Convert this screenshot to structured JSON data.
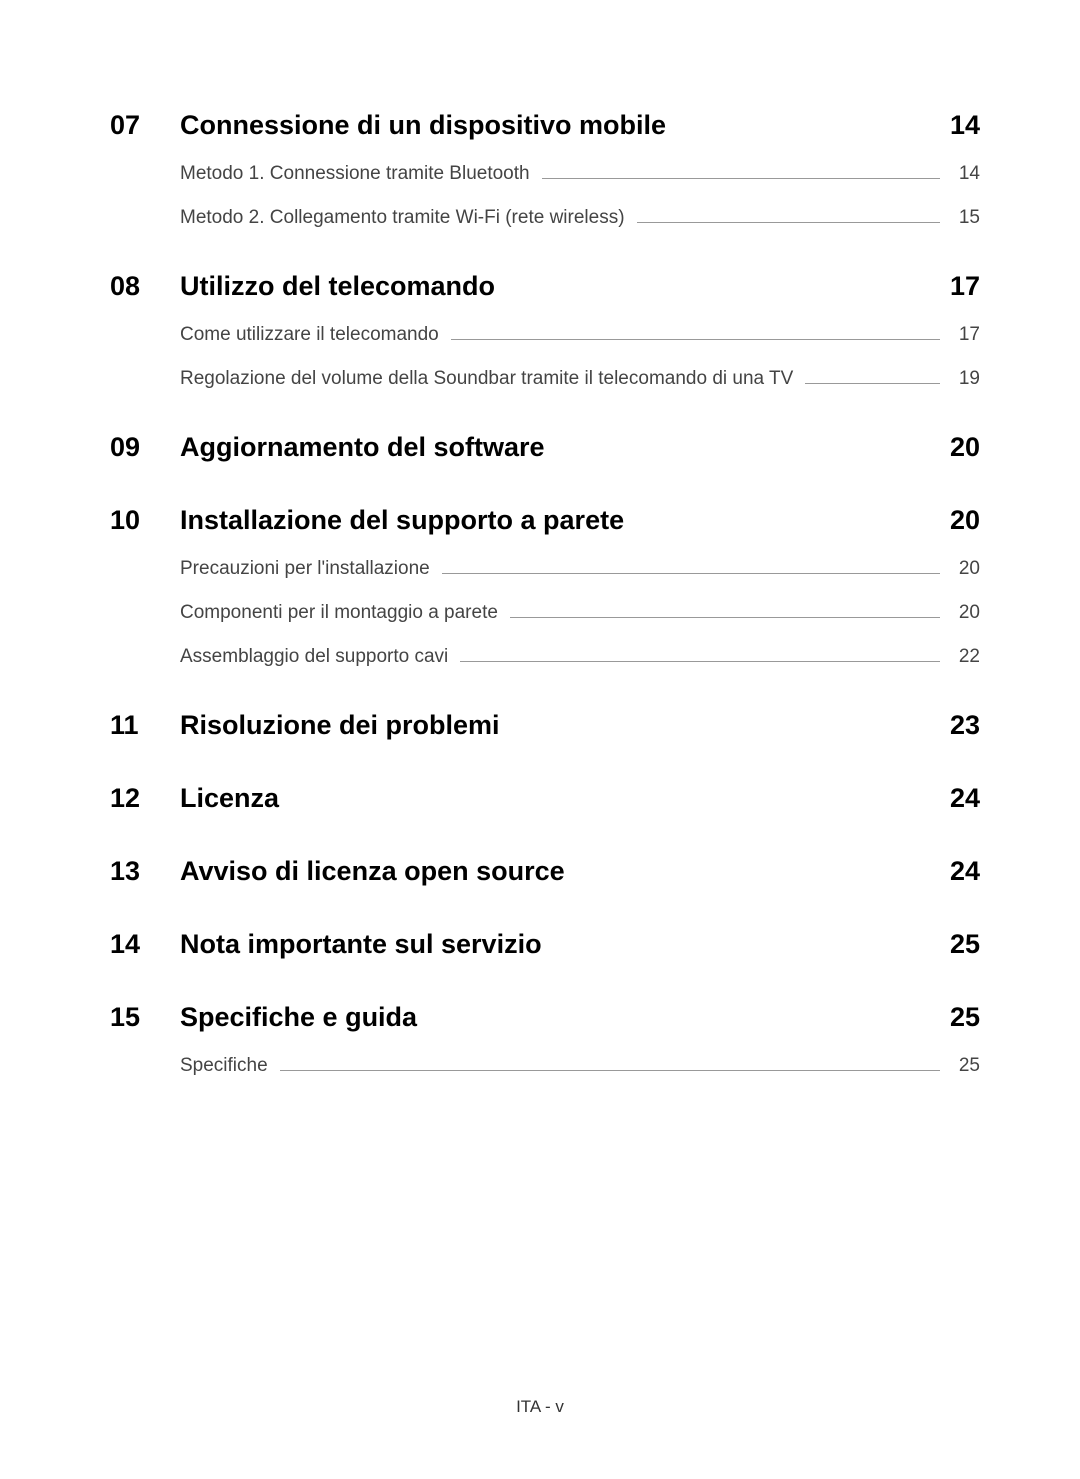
{
  "sections": [
    {
      "number": "07",
      "title": "Connessione di un dispositivo mobile",
      "page": "14",
      "subitems": [
        {
          "title": "Metodo 1. Connessione tramite Bluetooth",
          "page": "14"
        },
        {
          "title": "Metodo 2. Collegamento tramite Wi-Fi (rete wireless)",
          "page": "15"
        }
      ]
    },
    {
      "number": "08",
      "title": "Utilizzo del telecomando",
      "page": "17",
      "subitems": [
        {
          "title": "Come utilizzare il telecomando",
          "page": "17"
        },
        {
          "title": "Regolazione del volume della Soundbar tramite il telecomando di una TV",
          "page": "19"
        }
      ]
    },
    {
      "number": "09",
      "title": "Aggiornamento del software",
      "page": "20",
      "subitems": []
    },
    {
      "number": "10",
      "title": "Installazione del supporto a parete",
      "page": "20",
      "subitems": [
        {
          "title": "Precauzioni per l'installazione",
          "page": "20"
        },
        {
          "title": "Componenti per il montaggio a parete",
          "page": "20"
        },
        {
          "title": "Assemblaggio del supporto cavi",
          "page": "22"
        }
      ]
    },
    {
      "number": "11",
      "title": "Risoluzione dei problemi",
      "page": "23",
      "subitems": []
    },
    {
      "number": "12",
      "title": "Licenza",
      "page": "24",
      "subitems": []
    },
    {
      "number": "13",
      "title": "Avviso di licenza open source",
      "page": "24",
      "subitems": []
    },
    {
      "number": "14",
      "title": "Nota importante sul servizio",
      "page": "25",
      "subitems": []
    },
    {
      "number": "15",
      "title": "Specifiche e guida",
      "page": "25",
      "subitems": [
        {
          "title": "Specifiche",
          "page": "25"
        }
      ]
    }
  ],
  "footer": "ITA - v"
}
